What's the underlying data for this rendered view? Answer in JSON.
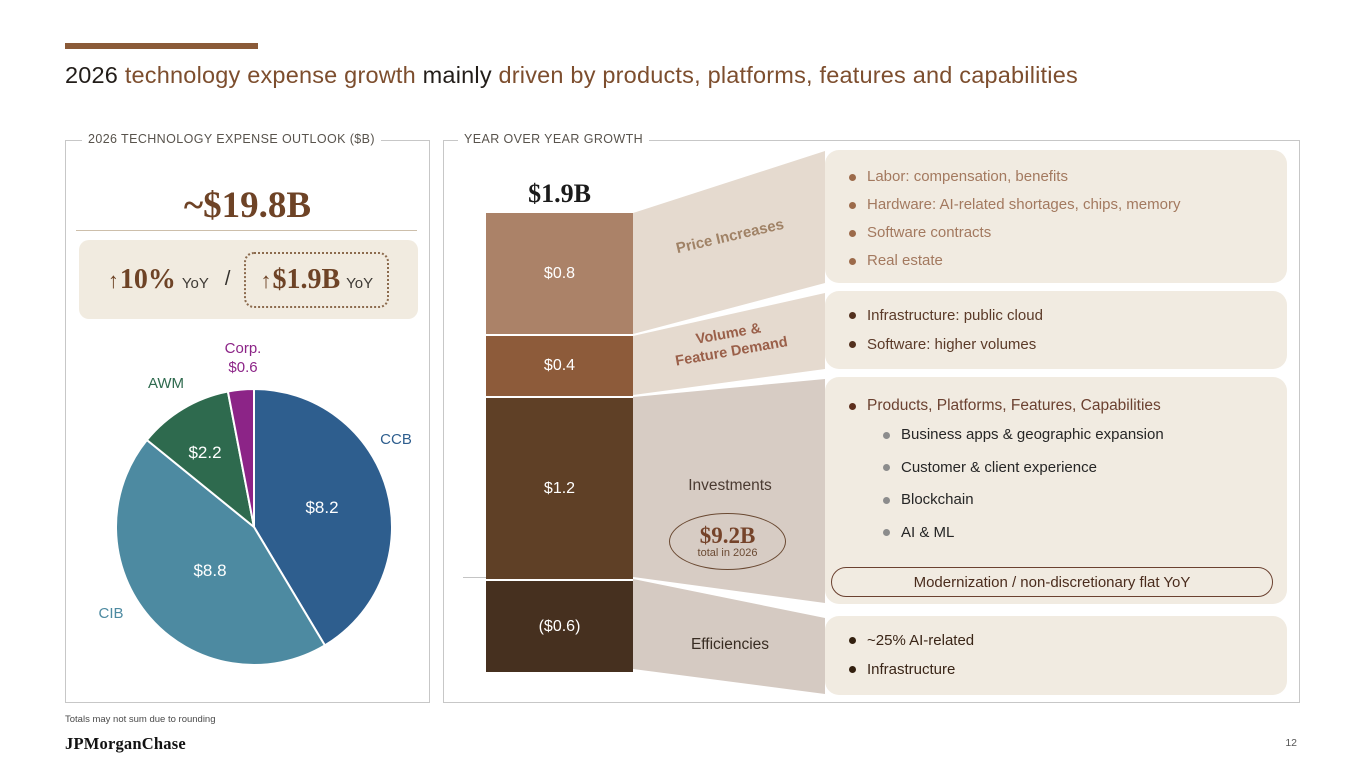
{
  "slide": {
    "accent_color": "#8a5a38",
    "title_parts": [
      {
        "text": "2026 ",
        "style": "dark"
      },
      {
        "text": "technology expense growth ",
        "style": "brown"
      },
      {
        "text": "mainly ",
        "style": "dark"
      },
      {
        "text": "driven by products, platforms, features and capabilities",
        "style": "brown"
      }
    ],
    "footnote": "Totals may not sum due to rounding",
    "logo": "JPMorganChase",
    "page_number": "12"
  },
  "expense_outlook": {
    "header": "2026 TECHNOLOGY EXPENSE OUTLOOK ($B)",
    "total": "~$19.8B",
    "growth_pct": {
      "arrow": "↑",
      "value": "10%",
      "suffix": "YoY"
    },
    "slash": "/",
    "growth_abs": {
      "arrow": "↑",
      "value": "$1.9B",
      "suffix": "YoY"
    }
  },
  "yoy_growth": {
    "header": "YEAR OVER YEAR GROWTH",
    "bar_total": "$1.9B",
    "price_increases": {
      "band_label": "Price Increases",
      "bullets": [
        "Labor: compensation, benefits",
        "Hardware: AI-related shortages, chips, memory",
        "Software contracts",
        "Real estate"
      ]
    },
    "volume_feature_demand": {
      "band_label": "Volume &\nFeature Demand",
      "bullets": [
        "Infrastructure: public cloud",
        "Software: higher volumes"
      ]
    },
    "investments": {
      "band_label": "Investments",
      "badge_value": "$9.2B",
      "badge_caption": "total in 2026",
      "lead_bullet": "Products, Platforms, Features, Capabilities",
      "sub_bullets": [
        "Business apps & geographic expansion",
        "Customer & client experience",
        "Blockchain",
        "AI & ML"
      ],
      "pill": "Modernization / non-discretionary flat YoY"
    },
    "efficiencies": {
      "band_label": "Efficiencies",
      "bullets": [
        "~25% AI-related",
        "Infrastructure"
      ]
    }
  },
  "chart_data": [
    {
      "type": "pie",
      "title": "2026 TECHNOLOGY EXPENSE OUTLOOK ($B)",
      "total_label": "~$19.8B",
      "units": "$B",
      "segments": [
        {
          "label": "CCB",
          "value": 8.2,
          "display": "$8.2",
          "color": "#2e5e8e",
          "label_color": "#2e5e8e"
        },
        {
          "label": "CIB",
          "value": 8.8,
          "display": "$8.8",
          "color": "#4d8aa1",
          "label_color": "#4d8aa1"
        },
        {
          "label": "AWM",
          "value": 2.2,
          "display": "$2.2",
          "color": "#2e6a4e",
          "label_color": "#2e6a4e"
        },
        {
          "label": "Corp.",
          "value": 0.6,
          "display": "$0.6",
          "color": "#8c2487",
          "label_color": "#8c2487"
        }
      ]
    },
    {
      "type": "bar",
      "title": "YEAR OVER YEAR GROWTH",
      "total_label": "$1.9B",
      "units": "$B",
      "segments": [
        {
          "label": "Price Increases",
          "value": 0.8,
          "display": "$0.8",
          "color": "#ab8268"
        },
        {
          "label": "Volume & Feature Demand",
          "value": 0.4,
          "display": "$0.4",
          "color": "#8d5b3a"
        },
        {
          "label": "Investments",
          "value": 1.2,
          "display": "$1.2",
          "color": "#5f4026"
        },
        {
          "label": "Efficiencies",
          "value": -0.6,
          "display": "($0.6)",
          "color": "#46301f"
        }
      ]
    }
  ]
}
